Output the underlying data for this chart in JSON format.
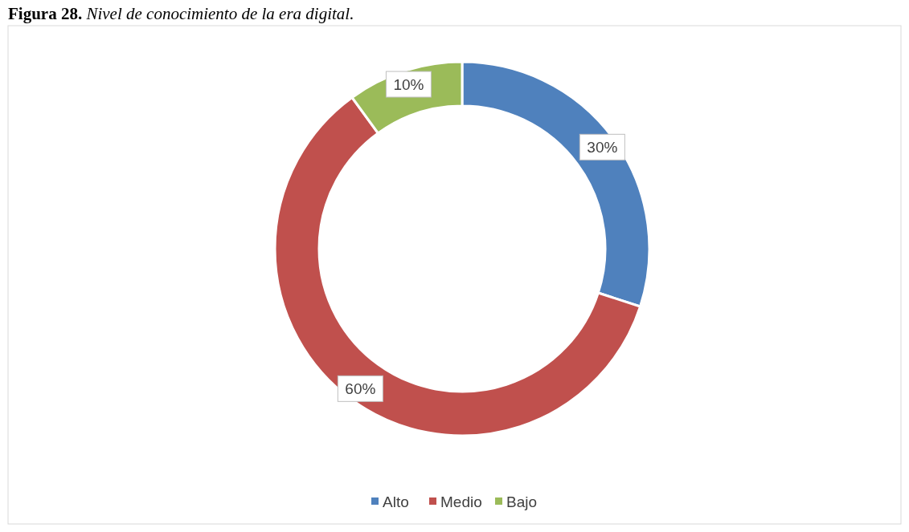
{
  "chart_data": {
    "type": "donut",
    "title": "Figura 28.",
    "subtitle": "Nivel de conocimiento de la era digital.",
    "categories": [
      "Alto",
      "Medio",
      "Bajo"
    ],
    "values": [
      30,
      60,
      10
    ],
    "colors": [
      "#4f81bd",
      "#c0504d",
      "#9bbb59"
    ],
    "value_labels": [
      "30%",
      "60%",
      "10%"
    ],
    "legend": "bottom"
  }
}
